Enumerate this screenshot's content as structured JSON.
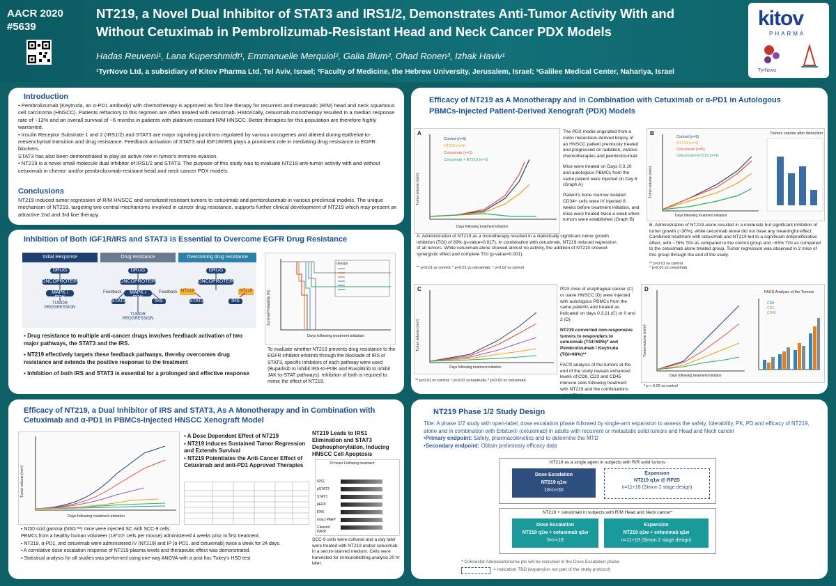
{
  "header": {
    "conference": "AACR 2020",
    "poster_no": "#5639",
    "title_line1": "NT219, a Novel Dual Inhibitor of STAT3 and IRS1/2, Demonstrates Anti-Tumor Activity With and",
    "title_line2": "Without Cetuximab in Pembrolizumab-Resistant Head and Neck Cancer PDX Models",
    "authors": "Hadas Reuveni¹, Lana Kupershmidt¹, Emmanuelle Merquiol², Galia Blum², Ohad Ronen³, Izhak Haviv¹",
    "affiliations": "¹TyrNovo Ltd, a subsidiary of Kitov Pharma Ltd, Tel Aviv, Israel; ²Faculty of Medicine, the Hebrew University, Jerusalem, Israel; ³Galilee Medical Center, Nahariya, Israel",
    "logo_main": "kitov",
    "logo_sub": "PHARMA",
    "logo_tyrnovo": "TyrNovo"
  },
  "intro": {
    "heading": "Introduction",
    "p1": "• Pembrolizumab (Keytruda, an α-PD1 antibody) with chemotherapy is approved as first line therapy for recurrent and metastatic (R/M) head and neck squamous cell carcinoma (HNSCC). Patients refractory to this regimen are often treated with cetuximab. Historically, cetuximab monotherapy resulted in a median response rate of ~13% and an overall survival of ~6 months in patients with platinum-resistant R/M HNSCC. Better therapies for this population are therefore highly warranted.",
    "p2": "• Insulin Receptor Substrate 1 and 2 (IRS1/2) and STAT3 are major signaling junctions regulated by various oncogenes and altered during epithelial-to-mesenchymal transition and drug resistance. Feedback activation of STAT3 and IGF1R/IRS plays a prominent role in mediating drug resistance to EGFR blockers.",
    "p3": "STAT3 has also been demonstrated to play an active role in tumor's immune evasion.",
    "p4": "• NT219 is a novel small molecule dual inhibitor of IRS1/2 and STAT3. The purpose of this study was to evaluate NT219 anti-tumor activity with and without cetuximab in chemo- and/or pembrolizumab-resistant head and neck cancer PDX models.",
    "conc_heading": "Conclusions",
    "conc": "NT219 induced tumor regression of R/M HNSCC and sensitized resistant tumors to cetuximab and pembrolizumab in various preclinical models. The unique mechanism of NT219, targeting two central mechanisms involved in cancer drug resistance, supports further clinical development of NT219 which may present an attractive 2nd and 3rd line therapy."
  },
  "inhibition": {
    "heading": "Inhibition of Both IGF1R/IRS and STAT3 is Essential to Overcome EGFR Drug Resistance",
    "tabs": [
      "Initial Response",
      "Drug resistance",
      "Overcoming drug resistance"
    ],
    "diagram": {
      "drug": "DRUG",
      "onco": "ONCOPROTEIN",
      "mapk": "MAPK / ERK",
      "prog": "TUMOR PROGRESSION",
      "feedback": "Feedback",
      "stat3": "STAT3",
      "irs": "IRS",
      "nt219": "NT219"
    },
    "bullets": [
      "Drug resistance to multiple anti-cancer drugs involves feedback activation of two major pathways, the STAT3 and the IRS.",
      "NT219 effectively targets these feedback pathways, thereby overcomes drug resistance and extends the positive response to the treatment",
      "Inhibition of both IRS and STAT3 is essential for a prolonged and effective response"
    ],
    "survival_ylabel": "Survival Probability (%)",
    "survival_xlabel": "Days following treatment initiation",
    "legend_title": "Groups",
    "caption": "To evaluate whether NT219 prevents drug resistance to the EGFR inhibitor erlotinib through the blockade of IRS or STAT3, specific inhibitors of each pathway were used (Buparlisib to inhibit IRS-to-PI3K and Ruxolitinib to inhibit JAK-to-STAT pathways). Inhibition of both is required to mimic the effect of NT219."
  },
  "efficacy_mono": {
    "heading": "Efficacy of NT219, a Dual Inhibitor of IRS and STAT3, As A Monotherapy and in Combination with Cetuximab and α-PD1 in PBMCs-Injected HNSCC Xenograft Model",
    "ylabel": "Tumor volume (mm³)",
    "xlabel": "Days following treatment initiation",
    "points": [
      "A Dose Dependent Effect of NT219",
      "NT219 induces Sustained Tumor Regression and Extends Survival",
      "NT219 Potentiates the Anti-Cancer Effect of Cetuximab and anti-PD1 Approved Therapies"
    ],
    "wb_title": "NT219 Leads to IRS1 Elimination and STAT3 Dephosphorylation, Inducing HNSCC Cell Apoptosis",
    "wb_header": "20 hours Following treatment",
    "wb_bands": [
      "IRS1",
      "pSTAT3",
      "STAT3",
      "pERK",
      "ERK",
      "Intact PARP",
      "Cleaved PARP"
    ],
    "wb_caption": "SCC-9 cells were cultured and a day later were treated with NT219 and/or cetuximab in a serum-starved medium. Cells were harvested for immunoblotting analysis 20 hr later.",
    "bullets": [
      "NOD scid gamma (NSG™) mice were injected SC with SCC-9 cells.",
      "PBMCs from a healthy human volunteer (18*10⁶ cells per mouse) administered 4 weeks prior to first treatment.",
      "NT219, α-PD1, and cetuximab were administered IV (NT219) and IP (α-PD1, and cetuximab) twice a week for 24 days.",
      "A correlative dose escalation response of NT219 plasma levels and therapeutic effect was demonstrated.",
      "Statistical analysis for all studies was performed using one-way ANOVA with a post hoc Tukey's HSD test"
    ]
  },
  "pdx": {
    "heading_line1": "Efficacy of NT219 as A Monotherapy and in Combination with Cetuximab or α-PD1 in Autologous",
    "heading_line2": "PBMCs-Injected Patient-Derived Xenograft (PDX) Models",
    "labels": [
      "A",
      "B",
      "C",
      "D"
    ],
    "legend_a": [
      "Control (n=5)",
      "NT219 (n=5)",
      "Cetuximab (n=3)",
      "Cetuximab + NT219 (n=3)"
    ],
    "legend_b": [
      "Control (n=5)",
      "NT219 (n=4)",
      "Cetuximab (n=5)",
      "Cetuximab+NT219 (n=4)"
    ],
    "bar_title": "Tumors volume after dissection",
    "facs_title": "FACS Analysis of the Tumors",
    "facs_legend": [
      "CD8",
      "CD3",
      "CD45"
    ],
    "text_a": "The PDX model originated from a colon metastasis-derived biopsy of an HNSCC patient previously treated and progressed on radiation, various chemotherapies and pembrolizumab.",
    "text_a2": "Mice were treated on Days 0,3,10 and autologous PBMCs from the same patient were injected on Day 6 (Graph A)",
    "text_a3": "Patient's bone marrow isolated CD34+ cells were IV injected 8 weeks before treatment initiation, and mice were treated twice a week when tumors were established (Graph B)",
    "cap_a": "A. Administration of NT219 as a monotherapy resulted in a statistically significant tumor growth inhibition (TGI) of 69% (p-value=0.017). In combination with cetuximab, NT219 induced regression of all tumors. While cetuximab alone showed almost no activity, the addition of NT219 showed synergistic effect and complete TGI (p-value=0.001).",
    "sig_a": "** p<0.01 vs control; * p<0.01 vs cetuximab; * p<0.02 vs control",
    "cap_b": "B. Administration of NT219 alone resulted in a moderate but significant inhibition of tumor growth (~30%), while cetuximab alone did not have any meaningful effect. Combined treatment with cetuximab and NT219 led to a significant antiproliferative effect, with ~75% TGI as compared to the control group and ~63% TGI as compared to the cetuximab alone treated group. Tumor regression was observed in 2 mice of this group through the end of the study.",
    "sig_b": "** p<0.01 vs control\n* p<0.01 vs cetuximab",
    "text_c": "PDX mice of esophageal cancer (C) or naive HNSCC (D) were injected with autologous PBMCs from the same patients and treated as indicated on days 0,3,11 (C) or 0 and 2 (D)",
    "text_c2": "NT219 converted non-responsive tumors to responders to cetuximab (TGI=69%)* and Pembrolizumab / Keytruda (TGI=98%)**",
    "text_c3": "FACS analysis of the tumors at the end of the study reveals enhanced levels of CD8, CD3 and CD45 immune cells following treatment with NT219 and the combinations with NT219",
    "sig_c": "** p<0.01 vs control; * p<0.01 vs keytruda; * p<0.02 vs cetuximab",
    "sig_d": "* p < 0.02 vs control",
    "x_label": "Days following treatment initiation",
    "y_label": "Tumor volume (mm³)"
  },
  "phase": {
    "heading": "NT219 Phase 1/2 Study Design",
    "title": "Title: A phase 1/2 study with open-label, dose escalation phase followed by single-arm expansion to assess the safety, tolerability, PK, PD and efficacy of NT219, alone and in combination with Erbitux® (cetuximab) in adults with recurrent or metastatic solid tumors and Head and Neck cancer",
    "primary_label": "•Primary endpoint:",
    "primary": "Safety, pharmacokinetics and to determine the MTD",
    "secondary_label": "•Secondary endpoint:",
    "secondary": "Obtain preliminary efficacy data",
    "box1_title": "NT219 as a single agent in subjects with R/R solid tumors",
    "de1_title": "Dose Escalation",
    "de1_l2": "NT219 q1w",
    "de1_l3": "18<n<30",
    "ex1_title": "Expansion",
    "ex1_l2": "NT219 q1w @ RP2D",
    "ex1_l3": "n=11+18 (Simon 2 stage design)",
    "box2_title": "NT219 + cetuximab in subjects with R/M Head and Neck cancer*",
    "de2_title": "Dose Escalation",
    "de2_l2": "NT219 q1w + cetuximab q1w",
    "de2_l3": "9<n<18",
    "ex2_title": "Expansion",
    "ex2_l2": "NT219 q1w + cetuximab q1w",
    "ex2_l3": "n=11+18 (Simon 2 stage design)",
    "foot1": "* Colorectal Adenocarcinoma pts will be recruited in the Dose Escalation phase",
    "foot2": "= Indication TBD (expansion not part of the study protocol)"
  }
}
